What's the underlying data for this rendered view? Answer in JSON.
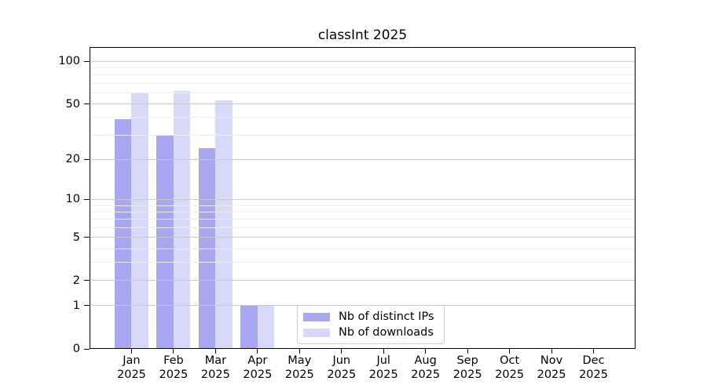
{
  "title": "classInt 2025",
  "colors": {
    "bar_distinct_ips": "#a6a6f1",
    "bar_downloads": "#d8d8f8",
    "grid_major": "#c9c9c9",
    "grid_minor": "#ececec",
    "axis": "#000000",
    "legend_border": "#cfcfcf"
  },
  "legend": {
    "position": "lower center",
    "items": [
      "Nb of distinct IPs",
      "Nb of downloads"
    ]
  },
  "chart_data": {
    "type": "bar",
    "title": "classInt 2025",
    "categories": [
      "Jan",
      "Feb",
      "Mar",
      "Apr",
      "May",
      "Jun",
      "Jul",
      "Aug",
      "Sep",
      "Oct",
      "Nov",
      "Dec"
    ],
    "x_axis": {
      "tick_labels_line2": "2025"
    },
    "series": [
      {
        "name": "Nb of distinct IPs",
        "color": "#a6a6f1",
        "values": [
          39,
          30,
          24,
          1,
          0,
          0,
          0,
          0,
          0,
          0,
          0,
          0
        ]
      },
      {
        "name": "Nb of downloads",
        "color": "#d8d8f8",
        "values": [
          60,
          62,
          53,
          1,
          0,
          0,
          0,
          0,
          0,
          0,
          0,
          0
        ]
      }
    ],
    "y_axis": {
      "scale": "log1p",
      "tick_values": [
        0,
        1,
        2,
        5,
        10,
        20,
        50,
        100
      ],
      "minor_gridline_values": [
        3,
        4,
        6,
        7,
        8,
        9,
        30,
        40,
        60,
        70,
        80,
        90
      ],
      "range": [
        0,
        126
      ]
    },
    "grid": "on",
    "legend_position": "lower center"
  }
}
